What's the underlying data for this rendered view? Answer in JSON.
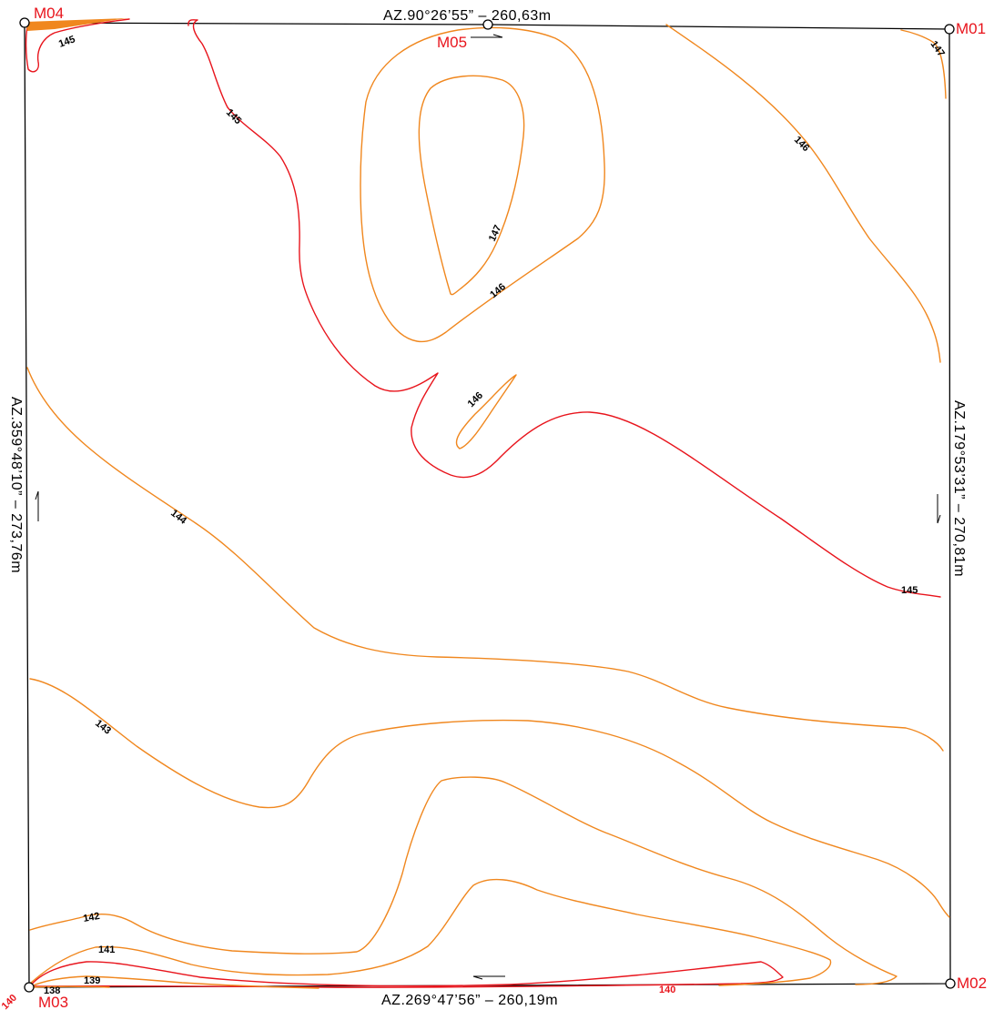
{
  "colors": {
    "index_contour": "#e8141c",
    "intermediate_contour": "#f0871e",
    "boundary": "#000000",
    "marker_label": "#e8141c",
    "background": "#ffffff"
  },
  "boundary_labels": {
    "north": "AZ.90°26’55” – 260,63m",
    "east": "AZ.179°53’31” – 270,81m",
    "south": "AZ.269°47’56” – 260,19m",
    "west": "AZ.359°48’10” – 273,76m"
  },
  "markers": {
    "m01": "M01",
    "m02": "M02",
    "m03": "M03",
    "m04": "M04",
    "m05": "M05"
  },
  "contour_labels": {
    "c145_corner": "145",
    "c147_corner": "147",
    "c145_upper": "145",
    "c146_upper_right": "146",
    "c147_hill": "147",
    "c146_hill": "146",
    "c146_small": "146",
    "c144": "144",
    "c145_right": "145",
    "c143": "143",
    "c142": "142",
    "c141": "141",
    "c139": "139",
    "c138": "138",
    "c140_corner": "140",
    "c140_bottom": "140"
  }
}
